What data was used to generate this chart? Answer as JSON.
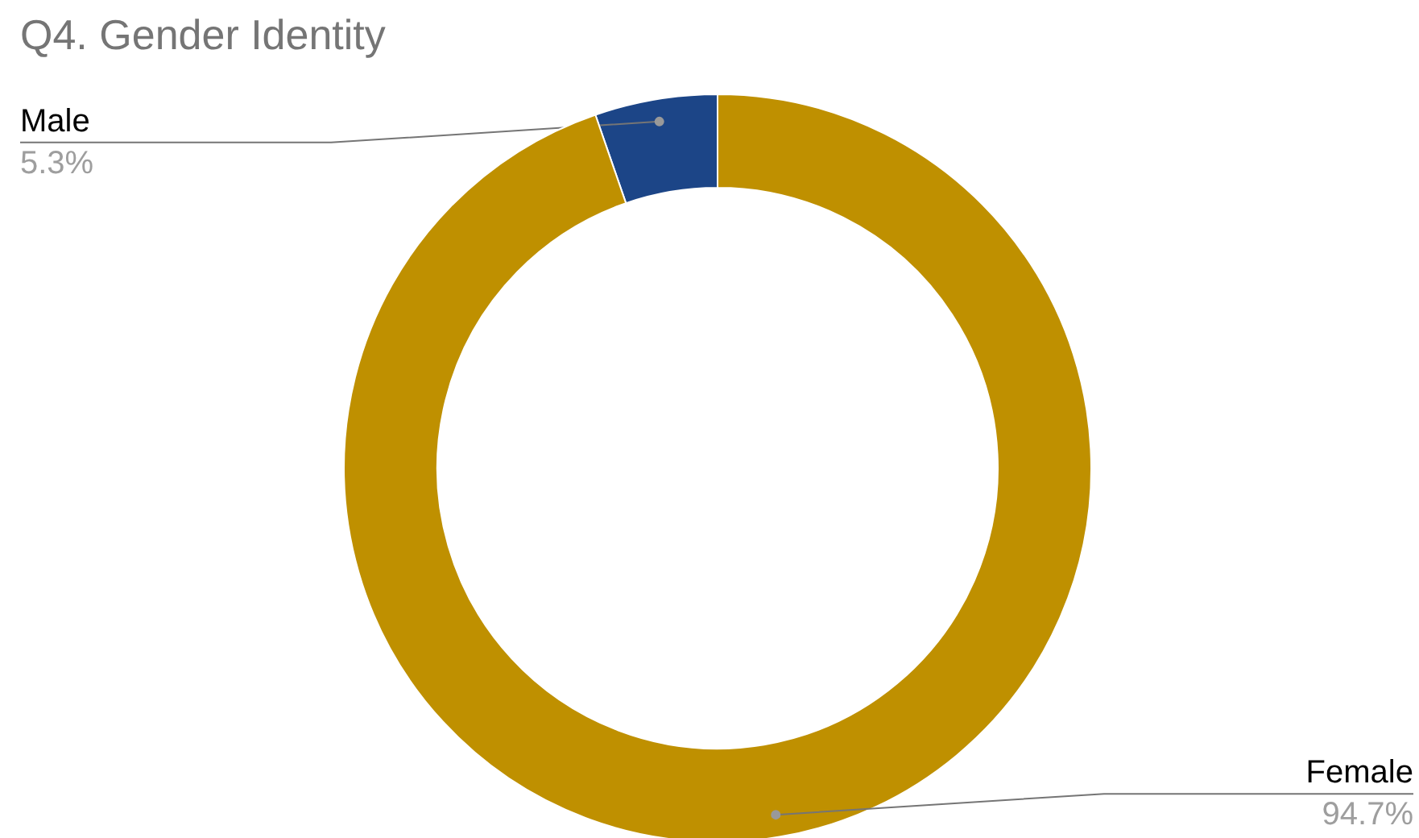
{
  "chart_data": {
    "type": "donut",
    "title": "Q4. Gender Identity",
    "categories": [
      "Male",
      "Female"
    ],
    "values": [
      5.3,
      94.7
    ],
    "colors": [
      "#1c4587",
      "#bf9000"
    ],
    "value_labels": [
      "5.3%",
      "94.7%"
    ]
  }
}
